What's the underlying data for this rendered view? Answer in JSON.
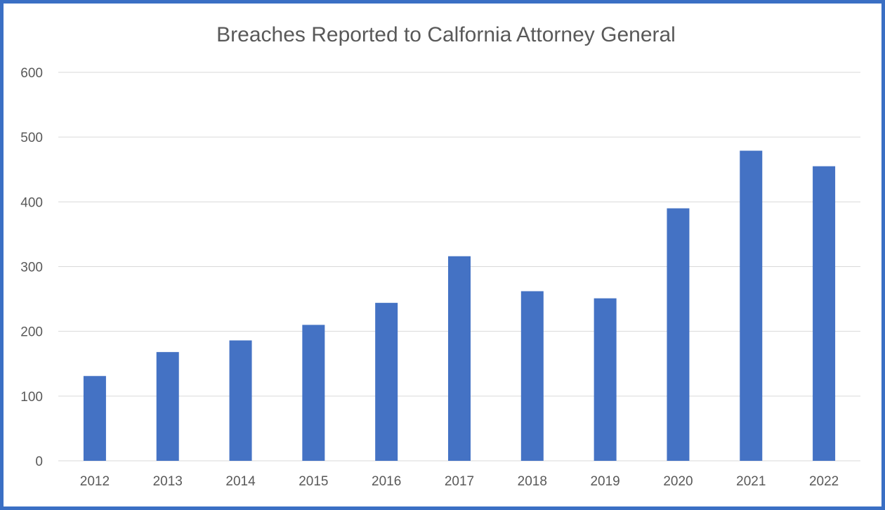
{
  "chart_data": {
    "type": "bar",
    "title": "Breaches Reported to Calfornia Attorney General",
    "xlabel": "",
    "ylabel": "",
    "categories": [
      "2012",
      "2013",
      "2014",
      "2015",
      "2016",
      "2017",
      "2018",
      "2019",
      "2020",
      "2021",
      "2022"
    ],
    "values": [
      131,
      168,
      186,
      210,
      244,
      316,
      262,
      251,
      390,
      479,
      455
    ],
    "ylim": [
      0,
      600
    ],
    "yticks": [
      0,
      100,
      200,
      300,
      400,
      500,
      600
    ],
    "grid": true,
    "legend": "none",
    "bar_color": "#4472c4",
    "gridline_color": "#d9d9d9",
    "frame_color": "#3a6fc4"
  }
}
